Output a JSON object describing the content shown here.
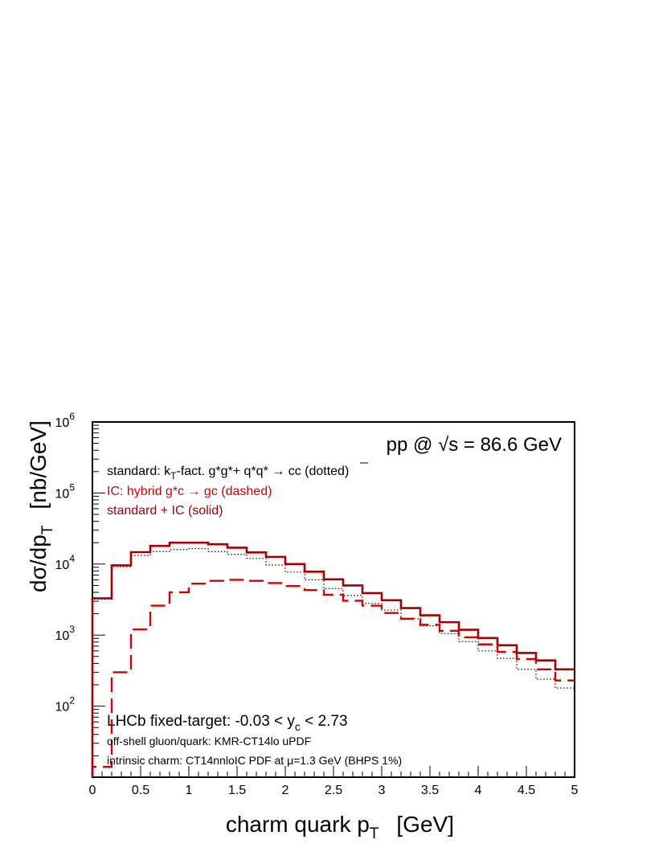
{
  "chart_data": {
    "type": "line",
    "title": "pp @ √s = 86.6 GeV",
    "title_parts": {
      "prefix": "pp @ ",
      "sqrt_arg": "s",
      "suffix": " = 86.6 GeV"
    },
    "xlabel": {
      "main": "charm quark p",
      "sub": "T",
      "unit": "[GeV]"
    },
    "ylabel": {
      "main": "dσ/dp",
      "sub": "T",
      "unit": "[nb/GeV]"
    },
    "xlim": [
      0,
      5
    ],
    "ylim": [
      10,
      1000000
    ],
    "y_scale": "log",
    "grid": false,
    "x_ticks": [
      "0",
      "0.5",
      "1",
      "1.5",
      "2",
      "2.5",
      "3",
      "3.5",
      "4",
      "4.5",
      "5"
    ],
    "y_ticks": [
      {
        "base": "10",
        "exp": "2",
        "value": 100
      },
      {
        "base": "10",
        "exp": "3",
        "value": 1000
      },
      {
        "base": "10",
        "exp": "4",
        "value": 10000
      },
      {
        "base": "10",
        "exp": "5",
        "value": 100000
      },
      {
        "base": "10",
        "exp": "6",
        "value": 1000000
      }
    ],
    "bin_edges": [
      0,
      0.2,
      0.4,
      0.6,
      0.8,
      1.0,
      1.2,
      1.4,
      1.6,
      1.8,
      2.0,
      2.2,
      2.4,
      2.6,
      2.8,
      3.0,
      3.2,
      3.4,
      3.6,
      3.8,
      4.0,
      4.2,
      4.4,
      4.6,
      4.8,
      5.0
    ],
    "series": [
      {
        "style": "dotted",
        "color": "#000000",
        "values": [
          3200,
          9200,
          13200,
          15000,
          16000,
          16500,
          15000,
          13700,
          12000,
          9700,
          7700,
          6000,
          4500,
          3600,
          2800,
          2250,
          1700,
          1350,
          1050,
          810,
          600,
          470,
          330,
          240,
          180
        ]
      },
      {
        "style": "dashed",
        "color": "#d40000",
        "values": [
          14,
          300,
          1200,
          2600,
          4000,
          5300,
          5800,
          6000,
          5800,
          5400,
          4900,
          4300,
          3700,
          3050,
          2600,
          2050,
          1700,
          1400,
          1150,
          930,
          740,
          580,
          460,
          330,
          230
        ]
      },
      {
        "style": "solid",
        "color": "#a00000",
        "values": [
          3300,
          9600,
          14700,
          18000,
          20000,
          20000,
          19000,
          17000,
          14600,
          12600,
          10000,
          7800,
          6100,
          5000,
          3900,
          3100,
          2400,
          1900,
          1520,
          1190,
          910,
          720,
          560,
          440,
          330
        ]
      }
    ],
    "legend": [
      {
        "text_parts": [
          "standard: k",
          "T",
          "-fact. g*g*+ q*q* → cc (dotted)"
        ],
        "color": "#000000"
      },
      {
        "text": "IC: hybrid g*c → gc (dashed)",
        "color": "#d40000"
      },
      {
        "text": "standard + IC (solid)",
        "color": "#a00000"
      }
    ],
    "legend_placement": "top-left",
    "annotations": [
      {
        "parts": [
          "LHCb fixed-target: -0.03 < y",
          "c",
          " < 2.73"
        ]
      },
      {
        "text": "off-shell gluon/quark: KMR-CT14lo uPDF"
      },
      {
        "text": "intrinsic charm: CT14nnloIC PDF at μ=1.3 GeV (BHPS 1%)"
      }
    ]
  }
}
